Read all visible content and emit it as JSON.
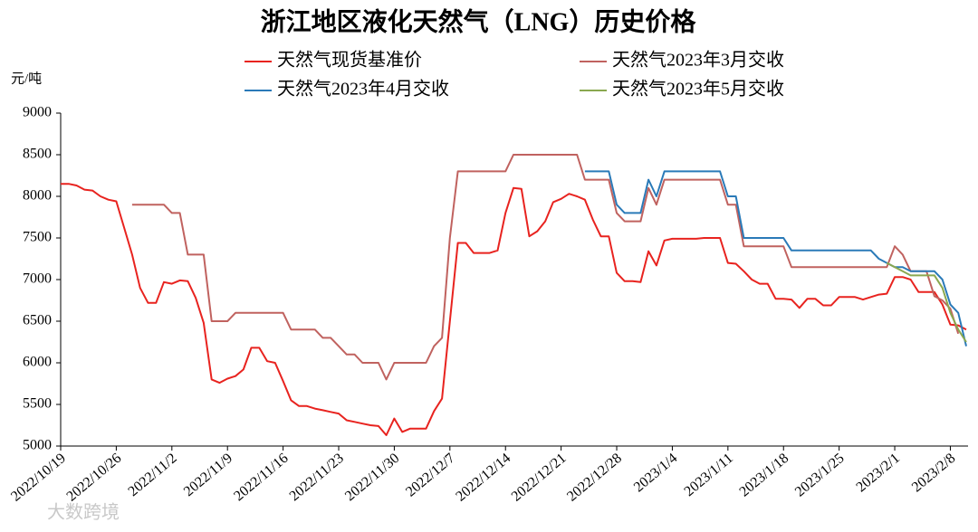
{
  "chart_data": {
    "type": "line",
    "title": "浙江地区液化天然气（LNG）历史价格",
    "y_label": "元/吨",
    "watermark": "大数跨境",
    "categories": [
      "2022/10/19",
      null,
      null,
      null,
      null,
      null,
      null,
      "2022/10/26",
      null,
      null,
      null,
      null,
      null,
      null,
      "2022/11/2",
      null,
      null,
      null,
      null,
      null,
      null,
      "2022/11/9",
      null,
      null,
      null,
      null,
      null,
      null,
      "2022/11/16",
      null,
      null,
      null,
      null,
      null,
      null,
      "2022/11/23",
      null,
      null,
      null,
      null,
      null,
      null,
      "2022/11/30",
      null,
      null,
      null,
      null,
      null,
      null,
      "2022/12/7",
      null,
      null,
      null,
      null,
      null,
      null,
      "2022/12/14",
      null,
      null,
      null,
      null,
      null,
      null,
      "2022/12/21",
      null,
      null,
      null,
      null,
      null,
      null,
      "2022/12/28",
      null,
      null,
      null,
      null,
      null,
      null,
      "2023/1/4",
      null,
      null,
      null,
      null,
      null,
      null,
      "2023/1/11",
      null,
      null,
      null,
      null,
      null,
      null,
      "2023/1/18",
      null,
      null,
      null,
      null,
      null,
      null,
      "2023/1/25",
      null,
      null,
      null,
      null,
      null,
      null,
      "2023/2/1",
      null,
      null,
      null,
      null,
      null,
      null,
      "2023/2/8",
      null,
      null
    ],
    "series": [
      {
        "name": "天然气现货基准价",
        "color": "#e8231f",
        "values": [
          8150,
          8150,
          8130,
          8080,
          8070,
          8000,
          7960,
          7940,
          7620,
          7300,
          6900,
          6720,
          6720,
          6970,
          6950,
          6990,
          6980,
          6780,
          6480,
          5800,
          5760,
          5810,
          5840,
          5920,
          6180,
          6180,
          6020,
          6000,
          5780,
          5550,
          5480,
          5480,
          5450,
          5430,
          5410,
          5390,
          5310,
          5290,
          5270,
          5250,
          5240,
          5130,
          5330,
          5170,
          5210,
          5210,
          5210,
          5420,
          5570,
          6500,
          7440,
          7440,
          7320,
          7320,
          7320,
          7350,
          7800,
          8100,
          8090,
          7520,
          7580,
          7700,
          7930,
          7970,
          8030,
          8000,
          7960,
          7720,
          7520,
          7520,
          7080,
          6980,
          6980,
          6970,
          7340,
          7170,
          7470,
          7490,
          7490,
          7490,
          7490,
          7500,
          7500,
          7500,
          7200,
          7190,
          7100,
          7000,
          6950,
          6950,
          6770,
          6770,
          6760,
          6660,
          6770,
          6770,
          6690,
          6690,
          6790,
          6790,
          6790,
          6760,
          6790,
          6820,
          6830,
          7030,
          7030,
          7000,
          6850,
          6850,
          6850,
          6700,
          6460,
          6450,
          6400
        ]
      },
      {
        "name": "天然气2023年3月交收",
        "color": "#c0625f",
        "values": [
          null,
          null,
          null,
          null,
          null,
          null,
          null,
          null,
          null,
          7900,
          7900,
          7900,
          7900,
          7900,
          7800,
          7800,
          7300,
          7300,
          7300,
          6500,
          6500,
          6500,
          6600,
          6600,
          6600,
          6600,
          6600,
          6600,
          6600,
          6400,
          6400,
          6400,
          6400,
          6300,
          6300,
          6200,
          6100,
          6100,
          6000,
          6000,
          6000,
          5800,
          6000,
          6000,
          6000,
          6000,
          6000,
          6200,
          6300,
          7500,
          8300,
          8300,
          8300,
          8300,
          8300,
          8300,
          8300,
          8500,
          8500,
          8500,
          8500,
          8500,
          8500,
          8500,
          8500,
          8500,
          8200,
          8200,
          8200,
          8200,
          7800,
          7700,
          7700,
          7700,
          8100,
          7900,
          8200,
          8200,
          8200,
          8200,
          8200,
          8200,
          8200,
          8200,
          7900,
          7900,
          7400,
          7400,
          7400,
          7400,
          7400,
          7400,
          7150,
          7150,
          7150,
          7150,
          7150,
          7150,
          7150,
          7150,
          7150,
          7150,
          7150,
          7150,
          7150,
          7400,
          7300,
          7100,
          7100,
          7100,
          6800,
          6750,
          6650,
          6350,
          null
        ]
      },
      {
        "name": "天然气2023年4月交收",
        "color": "#2a7ab8",
        "values": [
          null,
          null,
          null,
          null,
          null,
          null,
          null,
          null,
          null,
          null,
          null,
          null,
          null,
          null,
          null,
          null,
          null,
          null,
          null,
          null,
          null,
          null,
          null,
          null,
          null,
          null,
          null,
          null,
          null,
          null,
          null,
          null,
          null,
          null,
          null,
          null,
          null,
          null,
          null,
          null,
          null,
          null,
          null,
          null,
          null,
          null,
          null,
          null,
          null,
          null,
          null,
          null,
          null,
          null,
          null,
          null,
          null,
          null,
          null,
          null,
          null,
          null,
          null,
          null,
          null,
          null,
          8300,
          8300,
          8300,
          8300,
          7900,
          7800,
          7800,
          7800,
          8200,
          8000,
          8300,
          8300,
          8300,
          8300,
          8300,
          8300,
          8300,
          8300,
          8000,
          8000,
          7500,
          7500,
          7500,
          7500,
          7500,
          7500,
          7350,
          7350,
          7350,
          7350,
          7350,
          7350,
          7350,
          7350,
          7350,
          7350,
          7350,
          7250,
          7200,
          7150,
          7150,
          7100,
          7100,
          7100,
          7100,
          7000,
          6700,
          6600,
          6200
        ]
      },
      {
        "name": "天然气2023年5月交收",
        "color": "#8aa84f",
        "values": [
          null,
          null,
          null,
          null,
          null,
          null,
          null,
          null,
          null,
          null,
          null,
          null,
          null,
          null,
          null,
          null,
          null,
          null,
          null,
          null,
          null,
          null,
          null,
          null,
          null,
          null,
          null,
          null,
          null,
          null,
          null,
          null,
          null,
          null,
          null,
          null,
          null,
          null,
          null,
          null,
          null,
          null,
          null,
          null,
          null,
          null,
          null,
          null,
          null,
          null,
          null,
          null,
          null,
          null,
          null,
          null,
          null,
          null,
          null,
          null,
          null,
          null,
          null,
          null,
          null,
          null,
          null,
          null,
          null,
          null,
          null,
          null,
          null,
          null,
          null,
          null,
          null,
          null,
          null,
          null,
          null,
          null,
          null,
          null,
          null,
          null,
          null,
          null,
          null,
          null,
          null,
          null,
          null,
          null,
          null,
          null,
          null,
          null,
          null,
          null,
          null,
          null,
          null,
          null,
          7200,
          7150,
          7100,
          7050,
          7050,
          7050,
          7050,
          6900,
          6600,
          6400,
          6250
        ]
      }
    ],
    "ylim": [
      5000,
      9000
    ],
    "yticks": [
      5000,
      5500,
      6000,
      6500,
      7000,
      7500,
      8000,
      8500,
      9000
    ],
    "grid": false,
    "legend": "top"
  }
}
